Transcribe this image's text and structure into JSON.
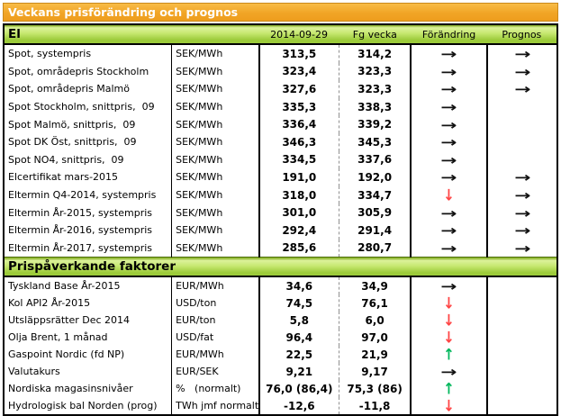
{
  "title": "Veckans prisförändring och prognos",
  "columns": {
    "date": "2014-09-29",
    "prev": "Fg vecka",
    "change": "Förändring",
    "forecast": "Prognos"
  },
  "arrows": {
    "right": "→",
    "down": "↓",
    "up": "↑"
  },
  "colors": {
    "banner-top": "#F8BC47",
    "banner-mid": "#F1A526",
    "banner-bottom": "#EE9D1D",
    "banner-border": "#C9891C",
    "green-edge": "#7FA81F",
    "green-light": "#DCF29B",
    "green-mid": "#C6E870",
    "green-deep": "#9CCB3A",
    "green-dark": "#4C6A08",
    "line-black": "#000000",
    "dash-gray": "#909090",
    "arrow-black": "#111111",
    "arrow-red": "#FF4444",
    "arrow-green": "#00B75C"
  },
  "sections": [
    {
      "header": "El",
      "show_columns": true,
      "rows": [
        {
          "label": "Spot, systempris",
          "unit": "SEK/MWh",
          "current": "313,5",
          "previous": "314,2",
          "change": "right",
          "forecast": "right"
        },
        {
          "label": "Spot, områdepris Stockholm",
          "unit": "SEK/MWh",
          "current": "323,4",
          "previous": "323,3",
          "change": "right",
          "forecast": "right"
        },
        {
          "label": "Spot, områdepris Malmö",
          "unit": "SEK/MWh",
          "current": "327,6",
          "previous": "323,3",
          "change": "right",
          "forecast": "right"
        },
        {
          "label": "Spot Stockholm, snittpris,  09",
          "unit": "SEK/MWh",
          "current": "335,3",
          "previous": "338,3",
          "change": "right",
          "forecast": ""
        },
        {
          "label": "Spot Malmö, snittpris,  09",
          "unit": "SEK/MWh",
          "current": "336,4",
          "previous": "339,2",
          "change": "right",
          "forecast": ""
        },
        {
          "label": "Spot DK Öst, snittpris,  09",
          "unit": "SEK/MWh",
          "current": "346,3",
          "previous": "345,3",
          "change": "right",
          "forecast": ""
        },
        {
          "label": "Spot NO4, snittpris,  09",
          "unit": "SEK/MWh",
          "current": "334,5",
          "previous": "337,6",
          "change": "right",
          "forecast": ""
        },
        {
          "label": "Elcertifikat mars-2015",
          "unit": "SEK/MWh",
          "current": "191,0",
          "previous": "192,0",
          "change": "right",
          "forecast": "right"
        },
        {
          "label": "Eltermin Q4-2014, systempris",
          "unit": "SEK/MWh",
          "current": "318,0",
          "previous": "334,7",
          "change": "down",
          "forecast": "right"
        },
        {
          "label": "Eltermin År-2015, systempris",
          "unit": "SEK/MWh",
          "current": "301,0",
          "previous": "305,9",
          "change": "right",
          "forecast": "right"
        },
        {
          "label": "Eltermin År-2016, systempris",
          "unit": "SEK/MWh",
          "current": "292,4",
          "previous": "291,4",
          "change": "right",
          "forecast": "right"
        },
        {
          "label": "Eltermin År-2017, systempris",
          "unit": "SEK/MWh",
          "current": "285,6",
          "previous": "280,7",
          "change": "right",
          "forecast": "right"
        }
      ]
    },
    {
      "header": "Prispåverkande faktorer",
      "show_columns": false,
      "rows": [
        {
          "label": "Tyskland Base År-2015",
          "unit": "EUR/MWh",
          "current": "34,6",
          "previous": "34,9",
          "change": "right",
          "forecast": ""
        },
        {
          "label": "Kol API2 År-2015",
          "unit": "USD/ton",
          "current": "74,5",
          "previous": "76,1",
          "change": "down",
          "forecast": ""
        },
        {
          "label": "Utsläppsrätter Dec 2014",
          "unit": "EUR/ton",
          "current": "5,8",
          "previous": "6,0",
          "change": "down",
          "forecast": ""
        },
        {
          "label": "Olja Brent, 1 månad",
          "unit": "USD/fat",
          "current": "96,4",
          "previous": "97,0",
          "change": "down",
          "forecast": ""
        },
        {
          "label": "Gaspoint Nordic (fd NP)",
          "unit": "EUR/MWh",
          "current": "22,5",
          "previous": "21,9",
          "change": "up",
          "forecast": ""
        },
        {
          "label": "Valutakurs",
          "unit": "EUR/SEK",
          "current": "9,21",
          "previous": "9,17",
          "change": "right",
          "forecast": ""
        },
        {
          "label": "Nordiska magasinsnivåer",
          "unit": "%   (normalt)",
          "current": "76,0 (86,4)",
          "previous": "75,3 (86)",
          "change": "up",
          "forecast": ""
        },
        {
          "label": "Hydrologisk bal Norden (prog)",
          "unit": "TWh jmf normalt",
          "current": "-12,6",
          "previous": "-11,8",
          "change": "down",
          "forecast": ""
        }
      ]
    }
  ]
}
